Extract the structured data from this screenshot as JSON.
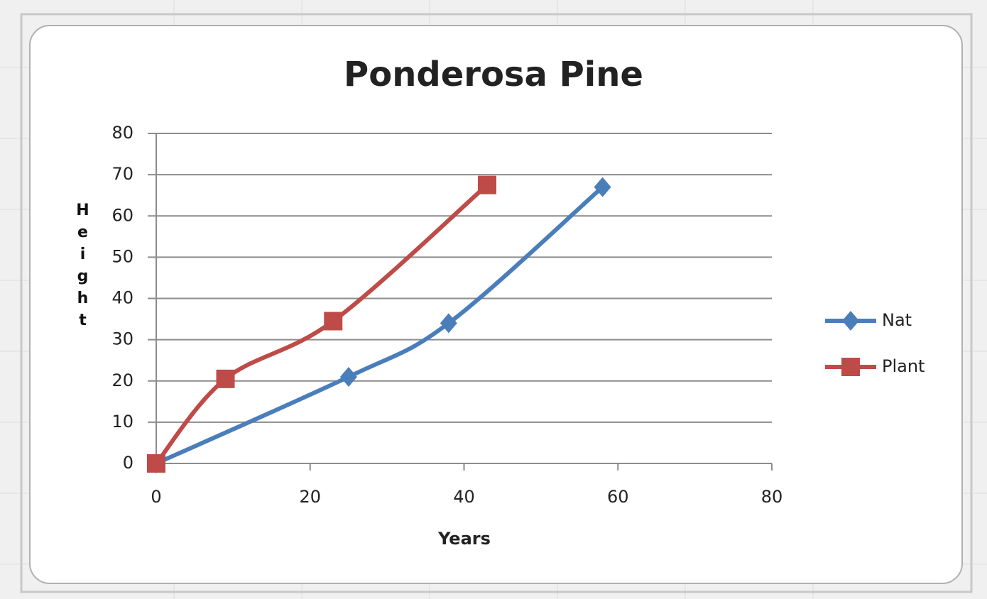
{
  "chart_data": {
    "type": "scatter_line",
    "title": "Ponderosa Pine",
    "x_label": "Years",
    "y_label": "Height",
    "xlim": [
      0,
      80
    ],
    "xticks": [
      0,
      20,
      40,
      60,
      80
    ],
    "ylim": [
      0,
      80
    ],
    "yticks": [
      0,
      10,
      20,
      30,
      40,
      50,
      60,
      70,
      80
    ],
    "grid": true,
    "smooth": true,
    "legend": "right",
    "series": [
      {
        "name": "Nat",
        "color": "#4a7ebb",
        "marker": "diamond",
        "x": [
          0,
          25,
          38,
          58
        ],
        "values": [
          0,
          21,
          34,
          67
        ]
      },
      {
        "name": "Plant",
        "color": "#be4b48",
        "marker": "square",
        "x": [
          0,
          9,
          23,
          43
        ],
        "values": [
          0,
          20.5,
          34.5,
          67.5
        ]
      }
    ]
  }
}
